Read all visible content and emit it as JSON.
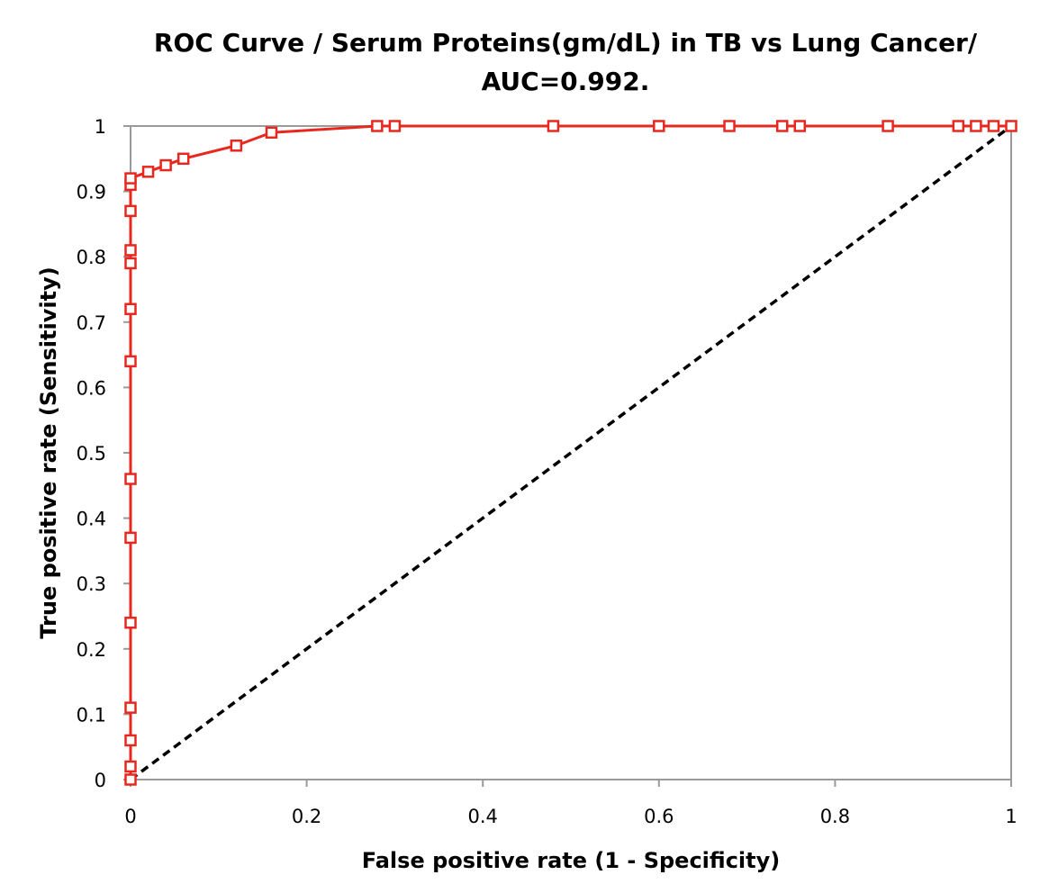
{
  "chart_data": {
    "type": "line",
    "title_line1": "ROC Curve / Serum Proteins(gm/dL)  in TB vs Lung Cancer/",
    "title_line2": "AUC=0.992.",
    "xlabel": "False positive rate (1 - Specificity)",
    "ylabel": "True positive rate (Sensitivity)",
    "xlim": [
      0,
      1
    ],
    "ylim": [
      0,
      1
    ],
    "x_ticks": [
      0,
      0.2,
      0.4,
      0.6,
      0.8,
      1
    ],
    "x_tick_labels": [
      "0",
      "0.2",
      "0.4",
      "0.6",
      "0.8",
      "1"
    ],
    "y_ticks": [
      0,
      0.1,
      0.2,
      0.3,
      0.4,
      0.5,
      0.6,
      0.7,
      0.8,
      0.9,
      1
    ],
    "y_tick_labels": [
      "0",
      "0.1",
      "0.2",
      "0.3",
      "0.4",
      "0.5",
      "0.6",
      "0.7",
      "0.8",
      "0.9",
      "1"
    ],
    "grid": false,
    "series": [
      {
        "name": "ROC curve",
        "color": "#e8281e",
        "marker": "open-square",
        "x": [
          0,
          0,
          0,
          0,
          0,
          0,
          0,
          0,
          0,
          0,
          0,
          0,
          0,
          0,
          0.02,
          0.04,
          0.06,
          0.12,
          0.16,
          0.28,
          0.3,
          0.48,
          0.6,
          0.68,
          0.74,
          0.76,
          0.86,
          0.94,
          0.96,
          0.98,
          1.0
        ],
        "y": [
          0,
          0.02,
          0.06,
          0.11,
          0.24,
          0.37,
          0.46,
          0.64,
          0.72,
          0.79,
          0.81,
          0.87,
          0.91,
          0.92,
          0.93,
          0.94,
          0.95,
          0.97,
          0.99,
          1,
          1,
          1,
          1,
          1,
          1,
          1,
          1,
          1,
          1,
          1,
          1
        ]
      },
      {
        "name": "Reference line",
        "color": "#000000",
        "style": "dashed",
        "x": [
          0,
          1
        ],
        "y": [
          0,
          1
        ]
      }
    ]
  }
}
